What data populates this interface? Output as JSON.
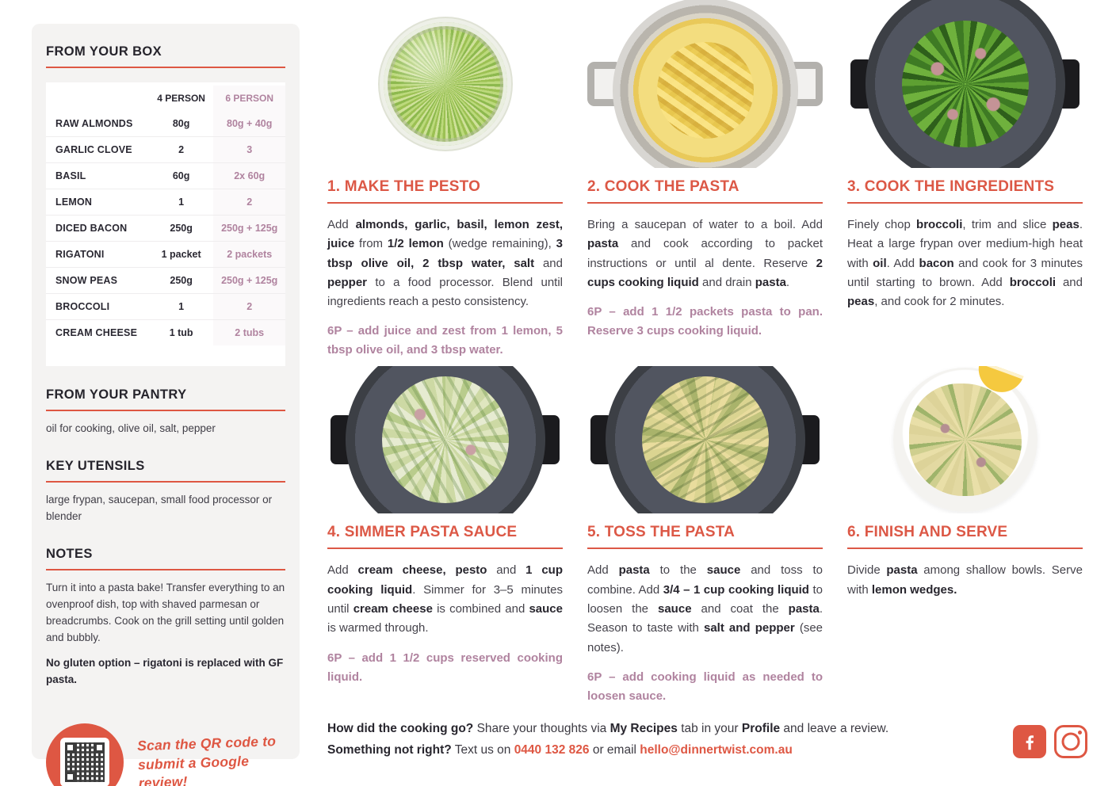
{
  "colors": {
    "accent": "#de5743",
    "six_person": "#b0839f",
    "heading_text": "#26242c",
    "body_text": "#45434b",
    "sidebar_bg": "#f4f3f2"
  },
  "sidebar": {
    "box": {
      "title": "FROM YOUR BOX",
      "col_4p": "4 PERSON",
      "col_6p": "6 PERSON",
      "rows": [
        {
          "name": "RAW ALMONDS",
          "p4": "80g",
          "p6": "80g + 40g"
        },
        {
          "name": "GARLIC CLOVE",
          "p4": "2",
          "p6": "3"
        },
        {
          "name": "BASIL",
          "p4": "60g",
          "p6": "2x 60g"
        },
        {
          "name": "LEMON",
          "p4": "1",
          "p6": "2"
        },
        {
          "name": "DICED BACON",
          "p4": "250g",
          "p6": "250g + 125g"
        },
        {
          "name": "RIGATONI",
          "p4": "1 packet",
          "p6": "2 packets"
        },
        {
          "name": "SNOW PEAS",
          "p4": "250g",
          "p6": "250g + 125g"
        },
        {
          "name": "BROCCOLI",
          "p4": "1",
          "p6": "2"
        },
        {
          "name": "CREAM CHEESE",
          "p4": "1 tub",
          "p6": "2 tubs"
        }
      ]
    },
    "pantry": {
      "title": "FROM YOUR PANTRY",
      "text": "oil for cooking, olive oil, salt, pepper"
    },
    "utensils": {
      "title": "KEY UTENSILS",
      "text": "large frypan, saucepan, small food processor or blender"
    },
    "notes": {
      "title": "NOTES",
      "text": "Turn it into a pasta bake! Transfer everything to an ovenproof dish, top with shaved parmesan or breadcrumbs. Cook on the grill setting until golden and bubbly.",
      "bold_text": "No gluten option – rigatoni is replaced with GF pasta."
    },
    "review": {
      "icon": "qr-code",
      "line1": "Scan the QR code to",
      "line2": "submit a Google review!"
    }
  },
  "steps": [
    {
      "title": "1. MAKE THE PESTO",
      "photo": "pesto-in-glass-bowl",
      "body_html": "Add <b>almonds, garlic, basil, lemon zest, juice</b> from <b>1/2 lemon</b> (wedge remaining), <b>3 tbsp olive oil, 2 tbsp water, salt</b> and <b>pepper</b> to a food processor. Blend until ingredients reach a pesto consistency.",
      "six_p": "6P – add juice and zest from 1 lemon, 5 tbsp olive oil, and 3 tbsp water."
    },
    {
      "title": "2. COOK THE PASTA",
      "photo": "rigatoni-in-steel-pot",
      "body_html": "Bring a saucepan of water to a boil. Add <b>pasta</b> and cook according to packet instructions or until al dente. Reserve <b>2 cups cooking liquid</b> and drain <b>pasta</b>.",
      "six_p": "6P – add 1 1/2 packets pasta to pan. Reserve 3 cups cooking liquid."
    },
    {
      "title": "3. COOK THE INGREDIENTS",
      "photo": "broccoli-peas-bacon-in-pan",
      "body_html": "Finely chop <b>broccoli</b>, trim and slice <b>peas</b>. Heat a large frypan over medium-high heat with <b>oil</b>. Add <b>bacon</b> and cook for 3 minutes until starting to brown. Add <b>broccoli</b> and <b>peas</b>, and cook for 2 minutes.",
      "six_p": ""
    },
    {
      "title": "4. SIMMER PASTA SAUCE",
      "photo": "creamy-pesto-sauce-in-pan",
      "body_html": "Add <b>cream cheese, pesto</b> and <b>1 cup cooking liquid</b>. Simmer for 3–5 minutes until <b>cream cheese</b> is combined and <b>sauce</b> is warmed through.",
      "six_p": "6P – add 1 1/2 cups reserved cooking liquid."
    },
    {
      "title": "5. TOSS THE PASTA",
      "photo": "tossed-pasta-in-pan",
      "body_html": "Add <b>pasta</b> to the <b>sauce</b> and toss to combine. Add <b>3/4 – 1 cup cooking liquid</b> to loosen the <b>sauce</b> and coat the <b>pasta</b>. Season to taste with <b>salt and pepper</b> (see notes).",
      "six_p": "6P – add cooking liquid as needed to loosen sauce."
    },
    {
      "title": "6. FINISH AND SERVE",
      "photo": "pasta-in-shallow-bowl-with-lemon",
      "body_html": "Divide <b>pasta</b> among shallow bowls. Serve with <b>lemon wedges.</b>",
      "six_p": ""
    }
  ],
  "footer": {
    "line1_html": "<b>How did the cooking go?</b> Share your thoughts via <b>My Recipes</b> tab in your <b>Profile</b> and leave a review.",
    "line2_html": "<b>Something not right?</b> Text us on <span class=\"accent\">0440 132 826</span> or email <span class=\"accent\">hello@dinnertwist.com.au</span>",
    "phone": "0440 132 826",
    "email": "hello@dinnertwist.com.au",
    "social": [
      "facebook-icon",
      "instagram-icon"
    ]
  }
}
